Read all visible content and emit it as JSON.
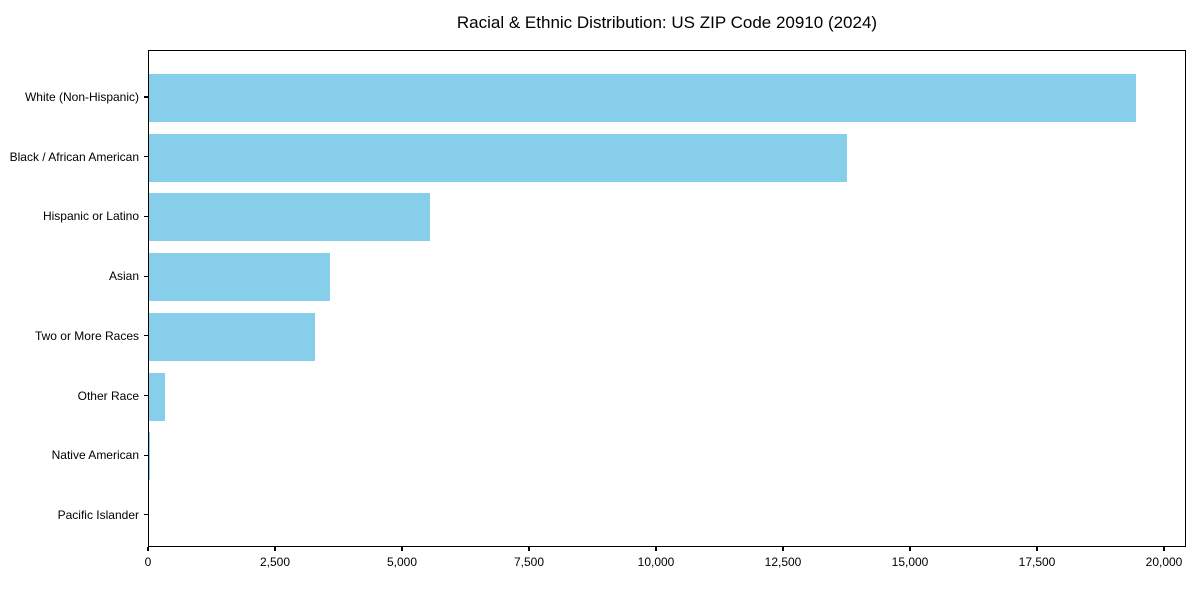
{
  "chart_data": {
    "type": "bar",
    "orientation": "horizontal",
    "title": "Racial & Ethnic Distribution: US ZIP Code 20910 (2024)",
    "categories": [
      "White (Non-Hispanic)",
      "Black / African American",
      "Hispanic or Latino",
      "Asian",
      "Two or More Races",
      "Other Race",
      "Native American",
      "Pacific Islander"
    ],
    "values": [
      19450,
      13760,
      5570,
      3600,
      3290,
      350,
      40,
      15
    ],
    "xlabel": "",
    "ylabel": "",
    "xlim": [
      0,
      20433
    ],
    "xticks": [
      0,
      2500,
      5000,
      7500,
      10000,
      12500,
      15000,
      17500,
      20000
    ],
    "xtick_labels": [
      "0",
      "2,500",
      "5,000",
      "7,500",
      "10,000",
      "12,500",
      "15,000",
      "17,500",
      "20,000"
    ],
    "bar_color": "#87CEEB",
    "axis_color": "#000000",
    "text_color": "#000000",
    "background_color": "#ffffff",
    "grid": false,
    "legend": "none"
  }
}
